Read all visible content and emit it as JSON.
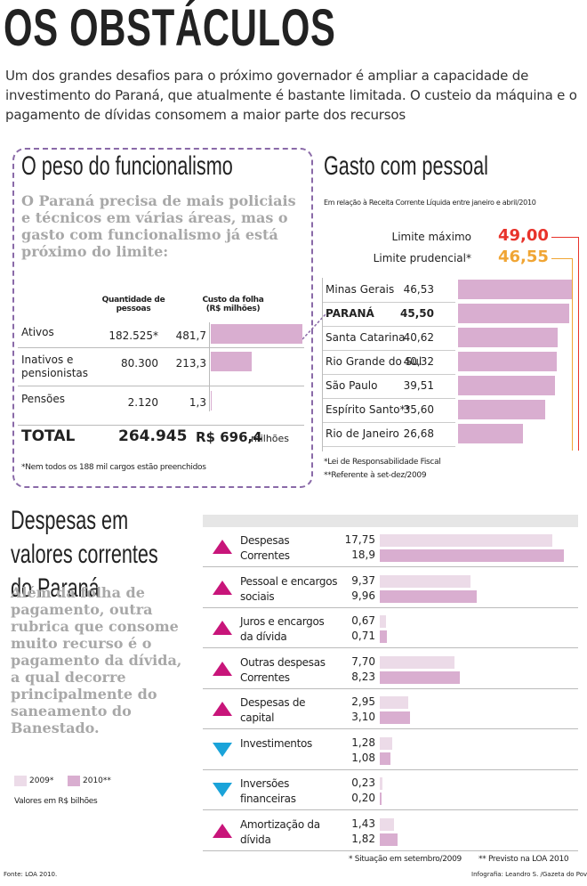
{
  "header": {
    "title": "OS OBSTÁCULOS",
    "intro": "Um dos grandes desafios para o próximo governador é ampliar a capacidade de investimento do Paraná, que atualmente é bastante limitada. O custeio da máquina e o pagamento de dívidas consomem a maior parte dos recursos"
  },
  "funcionalismo": {
    "title": "O peso do funcionalismo",
    "lead": "O Paraná precisa de mais policiais e técnicos em várias áreas, mas o gasto com funcionalismo já está próximo do limite:",
    "columns": [
      "Quantidade de pessoas",
      "Custo da folha (R$ milhões)"
    ],
    "color": "#d9aed0",
    "rows": [
      {
        "label": "Ativos",
        "qty": "182.525*",
        "cost": {
          "value": 481.7,
          "label": "481,7"
        }
      },
      {
        "label": "Inativos e pensionistas",
        "qty": "80.300",
        "cost": {
          "value": 213.3,
          "label": "213,3"
        }
      },
      {
        "label": "Pensões",
        "qty": "2.120",
        "cost": {
          "value": 1.3,
          "label": "1,3"
        }
      }
    ],
    "total": {
      "label": "TOTAL",
      "qty": "264.945",
      "cost": "R$ 696,4",
      "unit": "milhões"
    },
    "note": "*Nem todos os 188 mil cargos estão preenchidos"
  },
  "pessoal": {
    "title": "Gasto com pessoal",
    "subtitle": "Em relação à Receita Corrente Líquida entre janeiro e abril/2010",
    "color": "#d9aed0",
    "limits": [
      {
        "label": "Limite máximo",
        "value": {
          "value": 49.0,
          "label": "49,00"
        },
        "color": "#e8332b"
      },
      {
        "label": "Limite prudencial*",
        "value": {
          "value": 46.55,
          "label": "46,55"
        },
        "color": "#f0a534"
      }
    ],
    "states": [
      {
        "label": "Minas Gerais",
        "value": {
          "value": 46.53,
          "label": "46,53"
        }
      },
      {
        "label": "PARANÁ",
        "value": {
          "value": 45.5,
          "label": "45,50"
        },
        "highlight": true
      },
      {
        "label": "Santa Catarina",
        "value": {
          "value": 40.62,
          "label": "40,62"
        }
      },
      {
        "label": "Rio Grande do Sul",
        "value": {
          "value": 40.32,
          "label": "40,32"
        }
      },
      {
        "label": "São Paulo",
        "value": {
          "value": 39.51,
          "label": "39,51"
        }
      },
      {
        "label": "Espírito Santo**",
        "value": {
          "value": 35.6,
          "label": "35,60"
        }
      },
      {
        "label": "Rio de Janeiro",
        "value": {
          "value": 26.68,
          "label": "26,68"
        }
      }
    ],
    "notes": [
      "*Lei de Responsabilidade Fiscal",
      "**Referente à set-dez/2009"
    ]
  },
  "despesas": {
    "title": "Despesas em valores correntes do Paraná",
    "lead": "Além da folha de pagamento, outra rubrica que consome muito recurso é o pagamento da dívida, a qual decorre principalmente do saneamento do Banestado.",
    "legend": [
      {
        "name": "2009*",
        "color": "#ecdbe8"
      },
      {
        "name": "2010**",
        "color": "#d9aed0"
      }
    ],
    "unit": "Valores em R$ bilhões",
    "items": [
      {
        "label": "Despesas Correntes",
        "trend": "up",
        "v2009": {
          "value": 17.75,
          "label": "17,75"
        },
        "v2010": {
          "value": 18.9,
          "label": "18,9"
        }
      },
      {
        "label": "Pessoal e encargos sociais",
        "trend": "up",
        "v2009": {
          "value": 9.37,
          "label": "9,37"
        },
        "v2010": {
          "value": 9.96,
          "label": "9,96"
        }
      },
      {
        "label": "Juros e encargos da dívida",
        "trend": "up",
        "v2009": {
          "value": 0.67,
          "label": "0,67"
        },
        "v2010": {
          "value": 0.71,
          "label": "0,71"
        }
      },
      {
        "label": "Outras despesas Correntes",
        "trend": "up",
        "v2009": {
          "value": 7.7,
          "label": "7,70"
        },
        "v2010": {
          "value": 8.23,
          "label": "8,23"
        }
      },
      {
        "label": "Despesas de capital",
        "trend": "up",
        "v2009": {
          "value": 2.95,
          "label": "2,95"
        },
        "v2010": {
          "value": 3.1,
          "label": "3,10"
        }
      },
      {
        "label": "Investimentos",
        "trend": "down",
        "v2009": {
          "value": 1.28,
          "label": "1,28"
        },
        "v2010": {
          "value": 1.08,
          "label": "1,08"
        }
      },
      {
        "label": "Inversões financeiras",
        "trend": "down",
        "v2009": {
          "value": 0.23,
          "label": "0,23"
        },
        "v2010": {
          "value": 0.2,
          "label": "0,20"
        }
      },
      {
        "label": "Amortização da dívida",
        "trend": "up",
        "v2009": {
          "value": 1.43,
          "label": "1,43"
        },
        "v2010": {
          "value": 1.82,
          "label": "1,82"
        }
      }
    ],
    "trend_colors": {
      "up": "#c8157a",
      "down": "#1aa3d9"
    },
    "notes": [
      "* Situação em setembro/2009",
      "** Previsto na LOA 2010"
    ]
  },
  "footer": {
    "source": "Fonte: LOA 2010.",
    "credit": "Infografia: Leandro S. /Gazeta do Povo"
  }
}
